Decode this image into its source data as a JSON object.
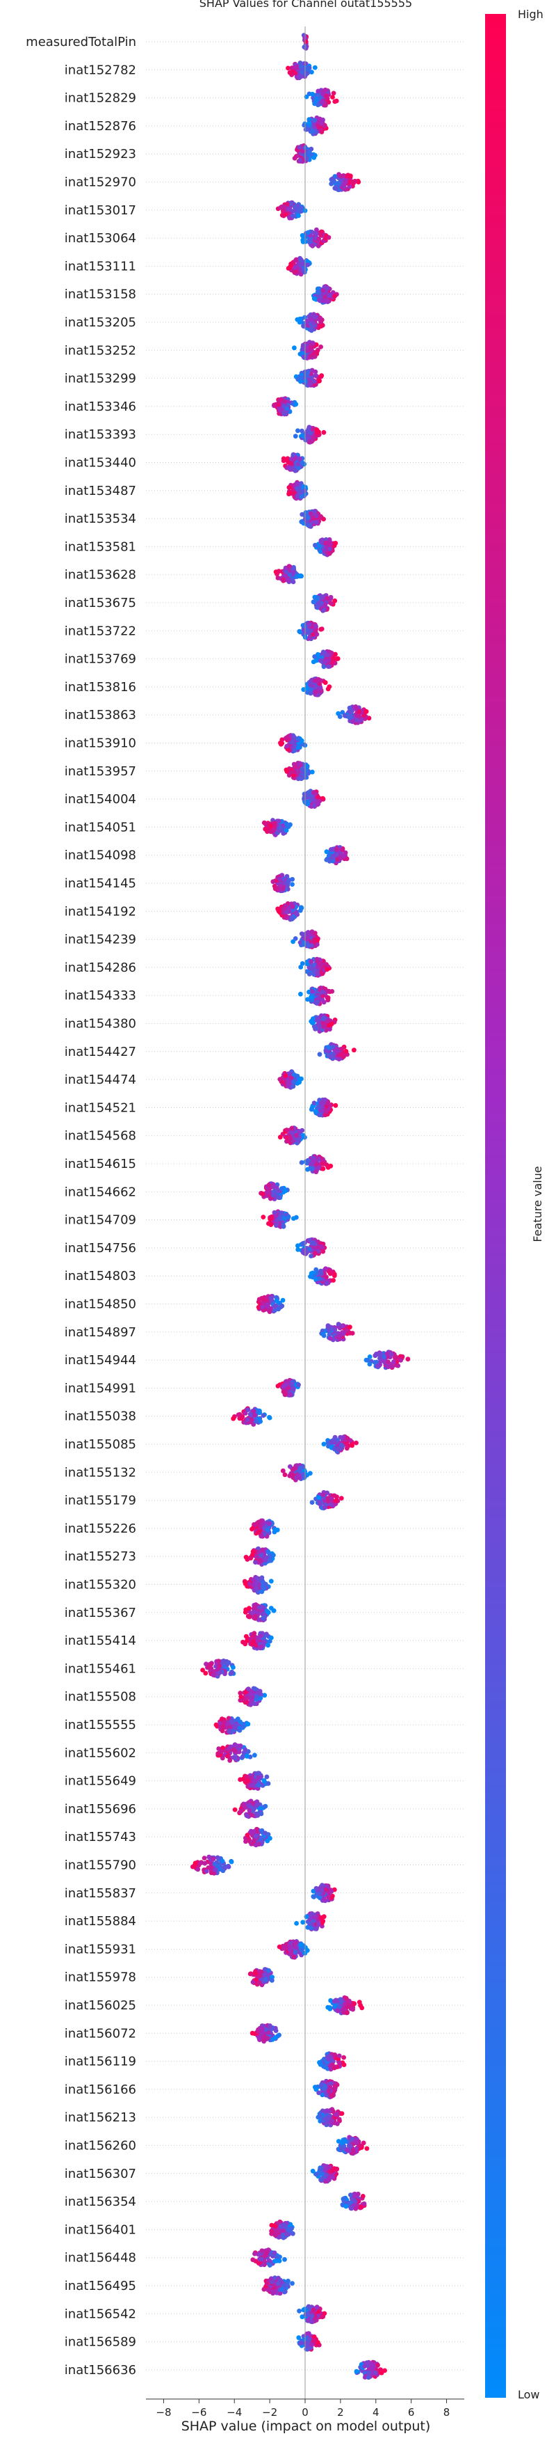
{
  "chart_data": {
    "type": "scatter",
    "title": "SHAP Values for Channel outat155555",
    "xlabel": "SHAP value (impact on model output)",
    "colorbar": {
      "label": "Feature value",
      "high_label": "High",
      "low_label": "Low",
      "colors": [
        "#008bfb",
        "#ff0052"
      ]
    },
    "xlim": [
      -9,
      9
    ],
    "xticks": [
      -8,
      -6,
      -4,
      -2,
      0,
      2,
      4,
      6,
      8
    ],
    "features": [
      {
        "name": "measuredTotalPin",
        "center": 0.0,
        "spread": 0.15
      },
      {
        "name": "inat152782",
        "center": -0.3,
        "spread": 0.8
      },
      {
        "name": "inat152829",
        "center": 1.0,
        "spread": 0.9
      },
      {
        "name": "inat152876",
        "center": 0.6,
        "spread": 0.8
      },
      {
        "name": "inat152923",
        "center": -0.1,
        "spread": 0.7
      },
      {
        "name": "inat152970",
        "center": 2.1,
        "spread": 0.9
      },
      {
        "name": "inat153017",
        "center": -0.8,
        "spread": 0.8
      },
      {
        "name": "inat153064",
        "center": 0.6,
        "spread": 0.8
      },
      {
        "name": "inat153111",
        "center": -0.3,
        "spread": 0.7
      },
      {
        "name": "inat153158",
        "center": 1.1,
        "spread": 0.8
      },
      {
        "name": "inat153205",
        "center": 0.4,
        "spread": 0.8
      },
      {
        "name": "inat153252",
        "center": 0.2,
        "spread": 0.8
      },
      {
        "name": "inat153299",
        "center": 0.3,
        "spread": 0.8
      },
      {
        "name": "inat153346",
        "center": -1.2,
        "spread": 0.8
      },
      {
        "name": "inat153393",
        "center": 0.2,
        "spread": 0.7
      },
      {
        "name": "inat153440",
        "center": -0.6,
        "spread": 0.7
      },
      {
        "name": "inat153487",
        "center": -0.4,
        "spread": 0.7
      },
      {
        "name": "inat153534",
        "center": 0.4,
        "spread": 0.7
      },
      {
        "name": "inat153581",
        "center": 1.2,
        "spread": 0.7
      },
      {
        "name": "inat153628",
        "center": -0.9,
        "spread": 0.8
      },
      {
        "name": "inat153675",
        "center": 1.0,
        "spread": 0.8
      },
      {
        "name": "inat153722",
        "center": 0.3,
        "spread": 0.7
      },
      {
        "name": "inat153769",
        "center": 1.2,
        "spread": 0.7
      },
      {
        "name": "inat153816",
        "center": 0.6,
        "spread": 0.8
      },
      {
        "name": "inat153863",
        "center": 2.8,
        "spread": 0.9
      },
      {
        "name": "inat153910",
        "center": -0.7,
        "spread": 0.7
      },
      {
        "name": "inat153957",
        "center": -0.3,
        "spread": 0.8
      },
      {
        "name": "inat154004",
        "center": 0.4,
        "spread": 0.7
      },
      {
        "name": "inat154051",
        "center": -1.6,
        "spread": 0.9
      },
      {
        "name": "inat154098",
        "center": 1.8,
        "spread": 0.9
      },
      {
        "name": "inat154145",
        "center": -1.3,
        "spread": 0.7
      },
      {
        "name": "inat154192",
        "center": -0.8,
        "spread": 0.8
      },
      {
        "name": "inat154239",
        "center": 0.2,
        "spread": 0.8
      },
      {
        "name": "inat154286",
        "center": 0.6,
        "spread": 0.9
      },
      {
        "name": "inat154333",
        "center": 0.8,
        "spread": 0.9
      },
      {
        "name": "inat154380",
        "center": 1.0,
        "spread": 0.8
      },
      {
        "name": "inat154427",
        "center": 1.7,
        "spread": 0.9
      },
      {
        "name": "inat154474",
        "center": -0.8,
        "spread": 0.7
      },
      {
        "name": "inat154521",
        "center": 1.0,
        "spread": 0.7
      },
      {
        "name": "inat154568",
        "center": -0.6,
        "spread": 0.8
      },
      {
        "name": "inat154615",
        "center": 0.6,
        "spread": 0.8
      },
      {
        "name": "inat154662",
        "center": -1.8,
        "spread": 0.8
      },
      {
        "name": "inat154709",
        "center": -1.5,
        "spread": 0.8
      },
      {
        "name": "inat154756",
        "center": 0.4,
        "spread": 0.9
      },
      {
        "name": "inat154803",
        "center": 1.0,
        "spread": 0.8
      },
      {
        "name": "inat154850",
        "center": -2.0,
        "spread": 0.9
      },
      {
        "name": "inat154897",
        "center": 1.8,
        "spread": 1.1
      },
      {
        "name": "inat154944",
        "center": 4.6,
        "spread": 1.2
      },
      {
        "name": "inat154991",
        "center": -0.9,
        "spread": 0.7
      },
      {
        "name": "inat155038",
        "center": -3.0,
        "spread": 1.0
      },
      {
        "name": "inat155085",
        "center": 2.0,
        "spread": 0.9
      },
      {
        "name": "inat155132",
        "center": -0.5,
        "spread": 0.8
      },
      {
        "name": "inat155179",
        "center": 1.2,
        "spread": 0.8
      },
      {
        "name": "inat155226",
        "center": -2.3,
        "spread": 0.8
      },
      {
        "name": "inat155273",
        "center": -2.5,
        "spread": 0.9
      },
      {
        "name": "inat155320",
        "center": -2.7,
        "spread": 0.8
      },
      {
        "name": "inat155367",
        "center": -2.6,
        "spread": 0.9
      },
      {
        "name": "inat155414",
        "center": -2.6,
        "spread": 0.9
      },
      {
        "name": "inat155461",
        "center": -4.8,
        "spread": 1.2
      },
      {
        "name": "inat155508",
        "center": -3.0,
        "spread": 0.8
      },
      {
        "name": "inat155555",
        "center": -4.2,
        "spread": 1.0
      },
      {
        "name": "inat155602",
        "center": -4.0,
        "spread": 1.1
      },
      {
        "name": "inat155649",
        "center": -2.8,
        "spread": 0.9
      },
      {
        "name": "inat155696",
        "center": -3.0,
        "spread": 0.9
      },
      {
        "name": "inat155743",
        "center": -2.7,
        "spread": 0.9
      },
      {
        "name": "inat155790",
        "center": -5.2,
        "spread": 1.3
      },
      {
        "name": "inat155837",
        "center": 1.1,
        "spread": 0.8
      },
      {
        "name": "inat155884",
        "center": 0.5,
        "spread": 0.8
      },
      {
        "name": "inat155931",
        "center": -0.6,
        "spread": 0.8
      },
      {
        "name": "inat155978",
        "center": -2.4,
        "spread": 0.9
      },
      {
        "name": "inat156025",
        "center": 2.1,
        "spread": 1.0
      },
      {
        "name": "inat156072",
        "center": -2.2,
        "spread": 0.9
      },
      {
        "name": "inat156119",
        "center": 1.5,
        "spread": 0.8
      },
      {
        "name": "inat156166",
        "center": 1.3,
        "spread": 0.8
      },
      {
        "name": "inat156213",
        "center": 1.4,
        "spread": 0.9
      },
      {
        "name": "inat156260",
        "center": 2.6,
        "spread": 0.9
      },
      {
        "name": "inat156307",
        "center": 1.2,
        "spread": 0.8
      },
      {
        "name": "inat156354",
        "center": 2.8,
        "spread": 0.8
      },
      {
        "name": "inat156401",
        "center": -1.3,
        "spread": 0.8
      },
      {
        "name": "inat156448",
        "center": -2.2,
        "spread": 1.0
      },
      {
        "name": "inat156495",
        "center": -1.6,
        "spread": 0.9
      },
      {
        "name": "inat156542",
        "center": 0.4,
        "spread": 0.7
      },
      {
        "name": "inat156589",
        "center": 0.2,
        "spread": 0.7
      },
      {
        "name": "inat156636",
        "center": 3.7,
        "spread": 1.0
      }
    ]
  }
}
